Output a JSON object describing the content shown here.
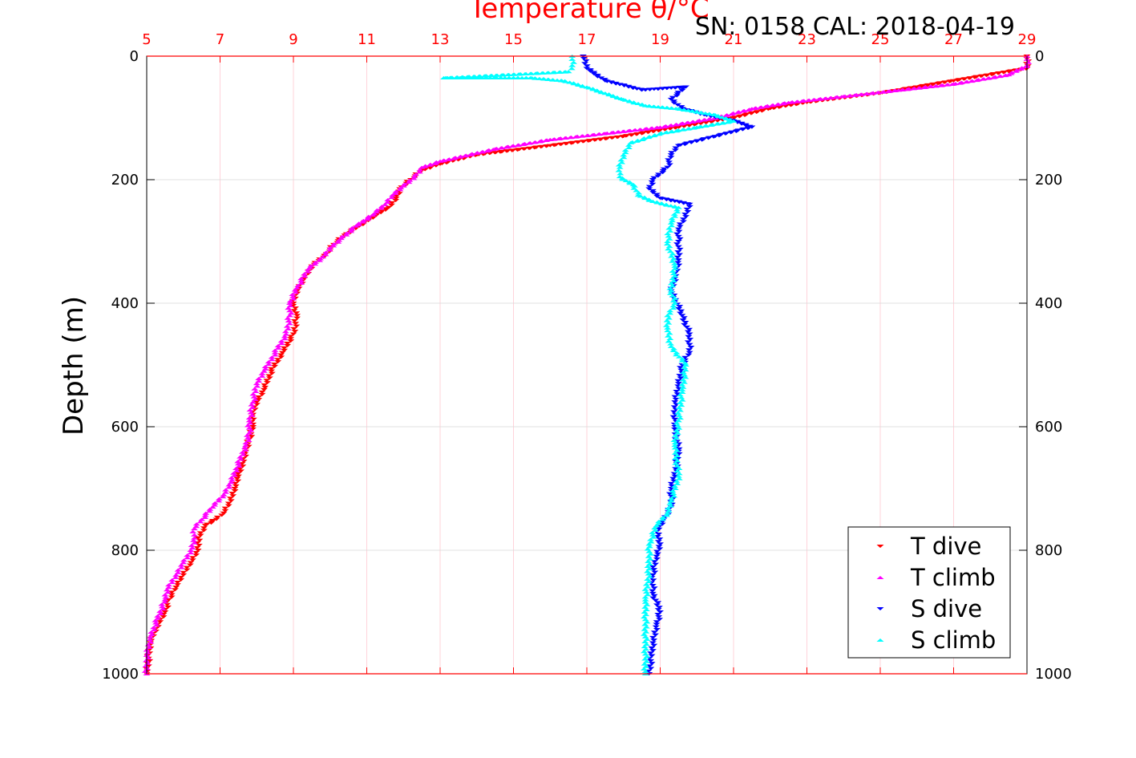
{
  "chart_data": {
    "type": "scatter",
    "title": "Temperature θ/°C",
    "subtitle": "SN: 0158  CAL: 2018-04-19",
    "ylabel": "Depth (m)",
    "xlim": [
      5,
      29
    ],
    "ylim": [
      0,
      1000
    ],
    "y_reversed": true,
    "x_axis_position": "top",
    "y_axis_mirrored": true,
    "grid": true,
    "xticks": [
      "5",
      "7",
      "9",
      "11",
      "13",
      "15",
      "17",
      "19",
      "21",
      "23",
      "25",
      "27",
      "29"
    ],
    "yticks": [
      "0",
      "200",
      "400",
      "600",
      "800",
      "1000"
    ],
    "legend_position": "bottom-right",
    "series": [
      {
        "name": "T dive",
        "marker": "triangle-down",
        "color": "#ff0000",
        "x": [
          29.0,
          29.0,
          27.0,
          25.0,
          23.0,
          22.0,
          21.0,
          19.5,
          18.0,
          16.0,
          14.0,
          13.0,
          12.5,
          12.2,
          11.9,
          11.8,
          11.6,
          11.2,
          10.8,
          10.4,
          10.1,
          9.9,
          9.5,
          9.3,
          9.1,
          9.0,
          9.1,
          9.0,
          8.7,
          8.4,
          8.2,
          8.0,
          7.9,
          7.9,
          7.8,
          7.7,
          7.6,
          7.5,
          7.4,
          7.3,
          7.1,
          6.9,
          6.6,
          6.4,
          6.4,
          6.2,
          6.0,
          5.8,
          5.6,
          5.5,
          5.3,
          5.1,
          5.0
        ],
        "y": [
          0,
          20,
          40,
          60,
          75,
          85,
          100,
          115,
          130,
          145,
          160,
          175,
          185,
          200,
          215,
          230,
          245,
          260,
          275,
          290,
          305,
          320,
          340,
          360,
          380,
          400,
          420,
          450,
          480,
          510,
          540,
          560,
          580,
          600,
          620,
          640,
          660,
          680,
          700,
          720,
          740,
          750,
          760,
          780,
          800,
          820,
          840,
          860,
          880,
          900,
          920,
          950,
          1000
        ]
      },
      {
        "name": "T climb",
        "marker": "triangle-up",
        "color": "#ff00ff",
        "x": [
          29.0,
          29.0,
          28.5,
          27.0,
          25.5,
          24.0,
          22.5,
          21.5,
          20.5,
          19.0,
          17.5,
          16.0,
          14.5,
          13.0,
          12.5,
          12.3,
          12.0,
          11.7,
          11.5,
          11.2,
          10.7,
          10.3,
          10.0,
          9.8,
          9.4,
          9.1,
          8.9,
          8.9,
          8.8,
          8.5,
          8.2,
          8.0,
          7.9,
          7.8,
          7.8,
          7.7,
          7.5,
          7.3,
          7.1,
          6.8,
          6.5,
          6.3,
          6.3,
          6.2,
          6.0,
          5.8,
          5.6,
          5.5,
          5.3,
          5.1,
          5.0,
          5.0
        ],
        "y": [
          0,
          15,
          30,
          45,
          55,
          65,
          75,
          85,
          100,
          115,
          125,
          135,
          150,
          170,
          180,
          195,
          210,
          225,
          240,
          255,
          275,
          295,
          310,
          325,
          345,
          375,
          400,
          420,
          450,
          480,
          510,
          530,
          560,
          590,
          610,
          630,
          660,
          690,
          710,
          730,
          750,
          765,
          780,
          800,
          820,
          840,
          860,
          880,
          910,
          940,
          970,
          1000
        ]
      },
      {
        "name": "S dive",
        "marker": "triangle-down",
        "color": "#0000ff",
        "x": [
          16.9,
          17.0,
          17.5,
          18.5,
          19.7,
          19.3,
          19.6,
          20.2,
          21.0,
          21.5,
          20.5,
          19.5,
          19.3,
          19.2,
          18.8,
          18.7,
          19.0,
          19.8,
          19.7,
          19.5,
          19.5,
          19.5,
          19.4,
          19.3,
          19.6,
          19.8,
          19.8,
          19.6,
          19.5,
          19.4,
          19.4,
          19.5,
          19.4,
          19.3,
          19.3,
          19.1,
          18.9,
          19.0,
          18.9,
          18.8,
          18.8,
          19.0,
          18.9,
          18.8,
          18.7
        ],
        "y": [
          0,
          20,
          40,
          55,
          50,
          70,
          85,
          95,
          105,
          115,
          130,
          145,
          160,
          180,
          200,
          215,
          230,
          240,
          260,
          280,
          300,
          330,
          360,
          380,
          420,
          450,
          480,
          500,
          530,
          560,
          600,
          640,
          680,
          700,
          730,
          750,
          770,
          790,
          810,
          840,
          870,
          900,
          920,
          950,
          1000
        ]
      },
      {
        "name": "S climb",
        "marker": "triangle-up",
        "color": "#00ffff",
        "x": [
          16.6,
          16.6,
          16.5,
          13.1,
          14.5,
          15.5,
          16.4,
          17.0,
          17.5,
          18.0,
          18.6,
          19.5,
          20.5,
          21.0,
          20.0,
          19.0,
          18.2,
          18.0,
          17.9,
          17.9,
          18.3,
          18.4,
          18.8,
          19.5,
          19.3,
          19.2,
          19.4,
          19.3,
          19.4,
          19.2,
          19.2,
          19.3,
          19.7,
          19.6,
          19.5,
          19.4,
          19.5,
          19.3,
          19.2,
          18.9,
          18.7,
          18.7,
          18.6,
          18.6,
          18.6
        ],
        "y": [
          0,
          15,
          25,
          35,
          35,
          35,
          40,
          50,
          60,
          70,
          80,
          85,
          95,
          105,
          115,
          125,
          140,
          160,
          180,
          195,
          210,
          225,
          235,
          245,
          270,
          300,
          340,
          380,
          400,
          420,
          440,
          470,
          500,
          540,
          590,
          630,
          680,
          720,
          740,
          760,
          790,
          830,
          880,
          940,
          1000
        ]
      }
    ]
  }
}
